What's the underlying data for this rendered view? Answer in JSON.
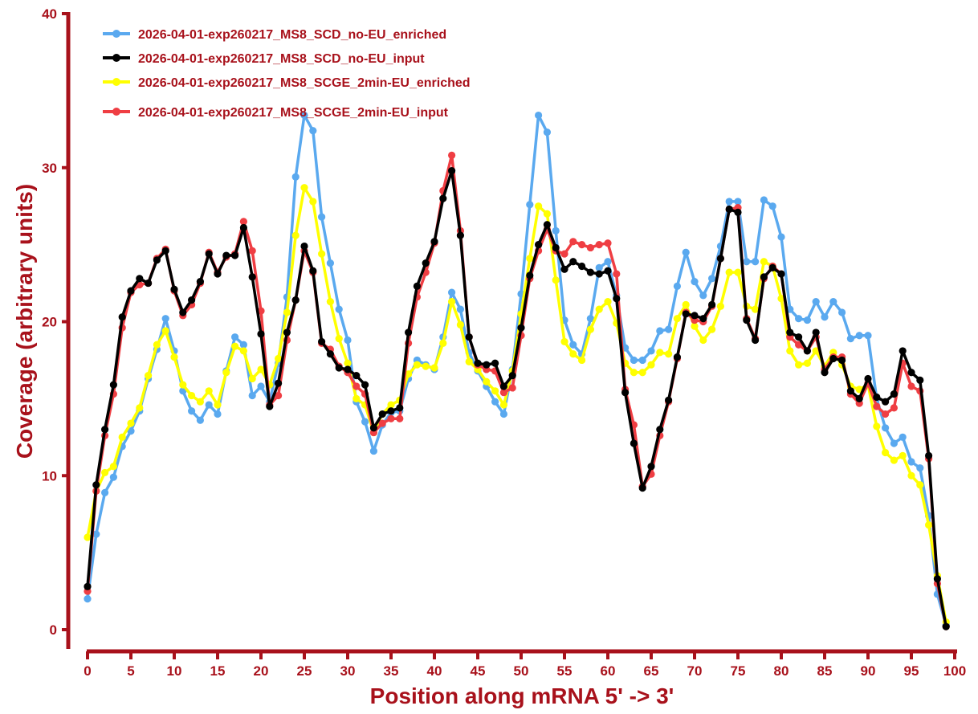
{
  "chart_data": {
    "type": "line",
    "title": "",
    "xlabel": "Position along mRNA 5' -> 3'",
    "ylabel": "Coverage (arbitrary units)",
    "xlim": [
      0,
      100
    ],
    "ylim": [
      0,
      40
    ],
    "xticks": [
      0,
      5,
      10,
      15,
      20,
      25,
      30,
      35,
      40,
      45,
      50,
      55,
      60,
      65,
      70,
      75,
      80,
      85,
      90,
      95,
      100
    ],
    "yticks": [
      0,
      10,
      20,
      30,
      40
    ],
    "xtick_labels": [
      "0",
      "5",
      "10",
      "15",
      "20",
      "25",
      "30",
      "35",
      "40",
      "45",
      "50",
      "55",
      "60",
      "65",
      "70",
      "75",
      "80",
      "85",
      "90",
      "95",
      "100"
    ],
    "ytick_labels": [
      "0",
      "10",
      "20",
      "30",
      "40"
    ],
    "grid": false,
    "legend_position": "top-left",
    "axis_color": "#a8111b",
    "x": [
      0,
      1,
      2,
      3,
      4,
      5,
      6,
      7,
      8,
      9,
      10,
      11,
      12,
      13,
      14,
      15,
      16,
      17,
      18,
      19,
      20,
      21,
      22,
      23,
      24,
      25,
      26,
      27,
      28,
      29,
      30,
      31,
      32,
      33,
      34,
      35,
      36,
      37,
      38,
      39,
      40,
      41,
      42,
      43,
      44,
      45,
      46,
      47,
      48,
      49,
      50,
      51,
      52,
      53,
      54,
      55,
      56,
      57,
      58,
      59,
      60,
      61,
      62,
      63,
      64,
      65,
      66,
      67,
      68,
      69,
      70,
      71,
      72,
      73,
      74,
      75,
      76,
      77,
      78,
      79,
      80,
      81,
      82,
      83,
      84,
      85,
      86,
      87,
      88,
      89,
      90,
      91,
      92,
      93,
      94,
      95,
      96,
      97,
      98,
      99
    ],
    "series": [
      {
        "name": "2026-04-01-exp260217_MS8_SCD_no-EU_enriched",
        "color": "#5aa9ef",
        "values": [
          2.0,
          6.2,
          8.9,
          9.9,
          11.9,
          12.9,
          14.2,
          16.3,
          18.2,
          20.2,
          18.1,
          15.5,
          14.2,
          13.6,
          14.6,
          14.0,
          16.8,
          19.0,
          18.5,
          15.2,
          15.8,
          14.8,
          17.3,
          21.6,
          29.4,
          33.4,
          32.4,
          26.8,
          23.8,
          20.8,
          18.8,
          14.8,
          13.5,
          11.6,
          13.3,
          14.1,
          14.2,
          16.3,
          17.5,
          17.2,
          16.9,
          19.0,
          21.9,
          20.8,
          18.0,
          16.8,
          15.8,
          14.8,
          14.0,
          16.9,
          21.8,
          27.6,
          33.4,
          32.3,
          25.9,
          20.1,
          18.5,
          17.9,
          20.2,
          23.5,
          23.9,
          21.7,
          18.3,
          17.5,
          17.5,
          18.1,
          19.4,
          19.5,
          22.3,
          24.5,
          22.6,
          21.7,
          22.8,
          24.9,
          27.8,
          27.8,
          23.9,
          23.9,
          27.9,
          27.5,
          25.5,
          20.8,
          20.2,
          20.1,
          21.3,
          20.3,
          21.3,
          20.6,
          18.9,
          19.1,
          19.1,
          15.0,
          13.1,
          12.1,
          12.5,
          10.9,
          10.5,
          7.4,
          2.3,
          0.3
        ]
      },
      {
        "name": "2026-04-01-exp260217_MS8_SCD_no-EU_input",
        "color": "#000000",
        "values": [
          2.8,
          9.4,
          13.0,
          15.9,
          20.3,
          22.0,
          22.8,
          22.5,
          24.0,
          24.6,
          22.1,
          20.6,
          21.4,
          22.6,
          24.4,
          23.1,
          24.3,
          24.3,
          26.1,
          22.9,
          19.2,
          14.5,
          16.0,
          19.3,
          21.4,
          24.9,
          23.3,
          18.7,
          17.9,
          17.0,
          16.9,
          16.5,
          15.9,
          13.1,
          14.0,
          14.2,
          14.4,
          19.3,
          22.3,
          23.8,
          25.2,
          28.0,
          29.8,
          25.6,
          19.0,
          17.3,
          17.2,
          17.3,
          15.8,
          16.5,
          19.6,
          23.0,
          25.0,
          26.3,
          24.8,
          23.4,
          23.9,
          23.6,
          23.2,
          23.1,
          23.3,
          21.5,
          15.4,
          12.1,
          9.2,
          10.6,
          13.0,
          14.9,
          17.7,
          20.5,
          20.4,
          20.2,
          21.1,
          24.1,
          27.3,
          27.1,
          20.1,
          18.8,
          22.9,
          23.5,
          23.1,
          19.3,
          19.0,
          18.1,
          19.3,
          16.7,
          17.6,
          17.5,
          15.5,
          15.0,
          16.3,
          15.1,
          14.8,
          15.3,
          18.1,
          16.7,
          16.2,
          11.3,
          3.3,
          0.2
        ]
      },
      {
        "name": "2026-04-01-exp260217_MS8_SCGE_2min-EU_enriched",
        "color": "#ffff00",
        "values": [
          6.0,
          9.0,
          10.2,
          10.6,
          12.5,
          13.4,
          14.4,
          16.5,
          18.5,
          19.4,
          17.7,
          15.9,
          15.2,
          14.8,
          15.5,
          14.6,
          16.7,
          18.4,
          18.1,
          16.3,
          16.9,
          15.9,
          17.6,
          20.6,
          25.6,
          28.7,
          27.8,
          24.4,
          21.3,
          18.9,
          17.3,
          15.0,
          14.6,
          12.8,
          14.0,
          14.6,
          14.9,
          16.6,
          17.2,
          17.1,
          17.0,
          18.6,
          21.3,
          19.8,
          17.4,
          16.9,
          16.1,
          15.5,
          14.6,
          16.8,
          20.5,
          24.1,
          27.5,
          27.0,
          22.7,
          18.7,
          17.9,
          17.5,
          19.5,
          20.8,
          21.3,
          19.9,
          17.3,
          16.7,
          16.7,
          17.2,
          18.0,
          17.9,
          20.2,
          21.1,
          19.7,
          18.8,
          19.5,
          21.0,
          23.2,
          23.2,
          21.0,
          20.8,
          23.9,
          23.6,
          21.5,
          18.1,
          17.2,
          17.3,
          18.1,
          17.1,
          18.0,
          17.2,
          15.8,
          15.6,
          15.9,
          13.2,
          11.5,
          11.0,
          11.3,
          10.0,
          9.4,
          6.8,
          3.5,
          0.5
        ]
      },
      {
        "name": "2026-04-01-exp260217_MS8_SCGE_2min-EU_input",
        "color": "#ef3e43",
        "values": [
          2.5,
          9.0,
          12.6,
          15.3,
          19.6,
          21.9,
          22.4,
          22.5,
          24.1,
          24.7,
          22.0,
          20.4,
          21.1,
          22.5,
          24.5,
          23.2,
          24.2,
          24.4,
          26.5,
          24.6,
          20.7,
          14.6,
          15.2,
          18.8,
          21.4,
          24.6,
          23.2,
          18.6,
          18.2,
          17.1,
          16.7,
          15.8,
          15.3,
          12.8,
          13.4,
          13.7,
          13.7,
          18.6,
          21.6,
          23.2,
          25.1,
          28.5,
          30.8,
          25.9,
          19.0,
          17.2,
          16.9,
          16.8,
          15.4,
          15.7,
          19.1,
          22.8,
          24.6,
          26.0,
          24.6,
          24.4,
          25.2,
          25.0,
          24.8,
          25.0,
          25.1,
          23.1,
          15.6,
          13.3,
          9.3,
          10.1,
          12.6,
          14.8,
          17.6,
          20.6,
          20.1,
          20.0,
          21.0,
          24.1,
          27.3,
          27.4,
          20.2,
          18.9,
          22.8,
          23.6,
          23.1,
          19.0,
          18.5,
          18.1,
          19.0,
          16.9,
          17.7,
          17.7,
          15.3,
          14.7,
          16.0,
          14.5,
          14.0,
          14.4,
          17.3,
          15.8,
          15.5,
          11.1,
          3.0,
          0.2
        ]
      }
    ]
  }
}
